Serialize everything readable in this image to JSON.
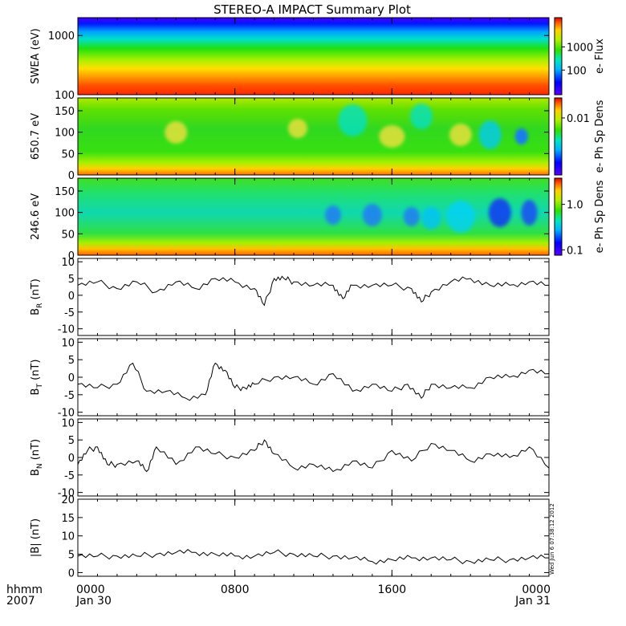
{
  "chart_data": {
    "type": "multi-panel",
    "title": "STEREO-A IMPACT Summary Plot",
    "x_ticks": [
      "0000",
      "0800",
      "1600",
      "0000"
    ],
    "x_dates": [
      "Jan 30",
      "",
      "",
      "Jan 31"
    ],
    "x_label_time": "hhmm",
    "x_label_year": "2007",
    "timestamp": "Wed Jun  6 07:38:12 2012",
    "panels": [
      {
        "kind": "heatmap",
        "ylabel": "SWEA (eV)",
        "y_log": true,
        "ylim": [
          100,
          2000
        ],
        "y_ticks": [
          "1000",
          "100"
        ],
        "y_tick_values": [
          1000,
          100
        ],
        "colorbar_label": "e-  Flux",
        "colorbar_ticks": [
          "1000",
          "100"
        ],
        "colorbar_tick_fracs": [
          0.62,
          0.32
        ]
      },
      {
        "kind": "heatmap",
        "ylabel": "650.7 eV",
        "ylim": [
          0,
          180
        ],
        "y_ticks": [
          "150",
          "100",
          "50",
          "0"
        ],
        "y_tick_values": [
          150,
          100,
          50,
          0
        ],
        "colorbar_label": "e-  Ph Sp Dens",
        "colorbar_ticks": [
          "0.01"
        ],
        "colorbar_tick_fracs": [
          0.74
        ]
      },
      {
        "kind": "heatmap",
        "ylabel": "246.6 eV",
        "ylim": [
          0,
          180
        ],
        "y_ticks": [
          "150",
          "100",
          "50",
          "0"
        ],
        "y_tick_values": [
          150,
          100,
          50,
          0
        ],
        "colorbar_label": "e-  Ph Sp Dens",
        "colorbar_ticks": [
          "1.0",
          "0.1"
        ],
        "colorbar_tick_fracs": [
          0.66,
          0.07
        ]
      },
      {
        "kind": "line",
        "ylabel": "B_R (nT)",
        "ylabel_main": "B",
        "ylabel_sub": "R",
        "ylabel_unit": " (nT)",
        "ylim": [
          -12,
          11
        ],
        "y_ticks": [
          "10",
          "5",
          "0",
          "-5",
          "-10"
        ],
        "y_tick_values": [
          10,
          5,
          0,
          -5,
          -10
        ],
        "x_hours": [
          0,
          1,
          2,
          3,
          4,
          5,
          6,
          7,
          8,
          9,
          9.5,
          10,
          10.5,
          11,
          12,
          13,
          13.5,
          14,
          15,
          16,
          17,
          17.5,
          18,
          19,
          20,
          21,
          22,
          23,
          24
        ],
        "values": [
          3,
          4,
          2,
          4,
          1,
          4,
          2,
          5,
          4,
          2,
          -3,
          5,
          5,
          4,
          3,
          3,
          -1,
          3,
          3,
          3,
          2,
          -2,
          1,
          4,
          5,
          3,
          3,
          4,
          3
        ]
      },
      {
        "kind": "line",
        "ylabel": "B_T (nT)",
        "ylabel_main": "B",
        "ylabel_sub": "T",
        "ylabel_unit": " (nT)",
        "ylim": [
          -11,
          11
        ],
        "y_ticks": [
          "10",
          "5",
          "0",
          "-5",
          "-10"
        ],
        "y_tick_values": [
          10,
          5,
          0,
          -5,
          -10
        ],
        "x_hours": [
          0,
          1,
          2,
          2.8,
          3.5,
          4.5,
          5.5,
          6.5,
          7,
          7.5,
          8,
          8.5,
          9,
          10,
          11,
          12,
          13,
          14,
          15,
          16,
          16.8,
          17.5,
          18,
          19,
          20,
          21,
          22,
          23,
          24
        ],
        "values": [
          -2,
          -3,
          -2,
          4,
          -4,
          -4,
          -6,
          -5,
          4,
          2,
          -3,
          -3,
          -2,
          0,
          0,
          -2,
          1,
          -4,
          -2,
          -4,
          -2,
          -6,
          -2,
          -3,
          -3,
          0,
          0,
          2,
          1
        ]
      },
      {
        "kind": "line",
        "ylabel": "B_N (nT)",
        "ylabel_main": "B",
        "ylabel_sub": "N",
        "ylabel_unit": " (nT)",
        "ylim": [
          -11,
          11
        ],
        "y_ticks": [
          "10",
          "5",
          "0",
          "-5",
          "-10"
        ],
        "y_tick_values": [
          10,
          5,
          0,
          -5,
          -10
        ],
        "x_hours": [
          0,
          0.5,
          1,
          1.5,
          2,
          3,
          3.5,
          4,
          5,
          6,
          7,
          8,
          9,
          9.5,
          10,
          11,
          12,
          13,
          14,
          15,
          16,
          17,
          18,
          19,
          20,
          21,
          22,
          23,
          24
        ],
        "values": [
          -2,
          2,
          3,
          -2,
          -2,
          -1,
          -4,
          3,
          -2,
          3,
          1,
          0,
          2,
          5,
          1,
          -3,
          -2,
          -4,
          -1,
          -3,
          2,
          -1,
          4,
          2,
          -1,
          1,
          0,
          3,
          -3
        ]
      },
      {
        "kind": "line",
        "ylabel": "|B| (nT)",
        "ylabel_main": "|B|",
        "ylabel_sub": "",
        "ylabel_unit": " (nT)",
        "ylim": [
          -1,
          20
        ],
        "y_ticks": [
          "20",
          "15",
          "10",
          "5",
          "0"
        ],
        "y_tick_values": [
          20,
          15,
          10,
          5,
          0
        ],
        "x_hours": [
          0,
          1,
          2,
          3,
          4,
          5,
          6,
          7,
          8,
          9,
          10,
          11,
          12,
          13,
          14,
          15,
          16,
          17,
          18,
          19,
          20,
          21,
          22,
          23,
          24
        ],
        "values": [
          4.5,
          4.5,
          4.5,
          4.5,
          5,
          5.5,
          5.5,
          5,
          4.5,
          4.5,
          5.5,
          5,
          4.5,
          4.5,
          4,
          3,
          3.5,
          4,
          4,
          3.5,
          3,
          3.5,
          3.5,
          4,
          4
        ]
      }
    ]
  }
}
